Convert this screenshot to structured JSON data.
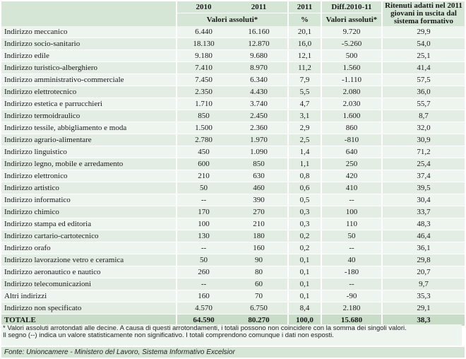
{
  "header": {
    "col_2010": "2010",
    "col_2011": "2011",
    "col_2011_pct": "2011",
    "col_diff": "Diff.2010-11",
    "col_ritenuti": "Ritenuti adatti nel 2011 giovani in uscita dal sistema formativo",
    "sub_valori_assoluti": "Valori assoluti*",
    "sub_pct": "%",
    "sub_diff": "Valori assoluti*"
  },
  "rows": [
    {
      "label": "Indirizzo meccanico",
      "v2010": "6.440",
      "v2011": "16.160",
      "pct": "20,1",
      "diff": "9.720",
      "ritenuti": "29,9"
    },
    {
      "label": "Indirizzo socio-sanitario",
      "v2010": "18.130",
      "v2011": "12.870",
      "pct": "16,0",
      "diff": "-5.260",
      "ritenuti": "54,0"
    },
    {
      "label": "Indirizzo edile",
      "v2010": "9.180",
      "v2011": "9.680",
      "pct": "12,1",
      "diff": "500",
      "ritenuti": "25,1"
    },
    {
      "label": "Indirizzo turistico-alberghiero",
      "v2010": "7.410",
      "v2011": "8.970",
      "pct": "11,2",
      "diff": "1.560",
      "ritenuti": "41,4"
    },
    {
      "label": "Indirizzo amministrativo-commerciale",
      "v2010": "7.450",
      "v2011": "6.340",
      "pct": "7,9",
      "diff": "-1.110",
      "ritenuti": "57,5"
    },
    {
      "label": "Indirizzo elettrotecnico",
      "v2010": "2.350",
      "v2011": "4.430",
      "pct": "5,5",
      "diff": "2.080",
      "ritenuti": "36,0"
    },
    {
      "label": "Indirizzo estetica e parrucchieri",
      "v2010": "1.710",
      "v2011": "3.740",
      "pct": "4,7",
      "diff": "2.030",
      "ritenuti": "55,7"
    },
    {
      "label": "Indirizzo termoidraulico",
      "v2010": "850",
      "v2011": "2.450",
      "pct": "3,1",
      "diff": "1.600",
      "ritenuti": "8,7"
    },
    {
      "label": "Indirizzo tessile, abbigliamento e moda",
      "v2010": "1.500",
      "v2011": "2.360",
      "pct": "2,9",
      "diff": "860",
      "ritenuti": "32,0"
    },
    {
      "label": "Indirizzo agrario-alimentare",
      "v2010": "2.780",
      "v2011": "1.970",
      "pct": "2,5",
      "diff": "-810",
      "ritenuti": "30,9"
    },
    {
      "label": "Indirizzo linguistico",
      "v2010": "450",
      "v2011": "1.090",
      "pct": "1,4",
      "diff": "640",
      "ritenuti": "71,2"
    },
    {
      "label": "Indirizzo legno, mobile e arredamento",
      "v2010": "600",
      "v2011": "850",
      "pct": "1,1",
      "diff": "250",
      "ritenuti": "25,4"
    },
    {
      "label": "Indirizzo elettronico",
      "v2010": "210",
      "v2011": "630",
      "pct": "0,8",
      "diff": "420",
      "ritenuti": "37,4"
    },
    {
      "label": "Indirizzo artistico",
      "v2010": "50",
      "v2011": "460",
      "pct": "0,6",
      "diff": "410",
      "ritenuti": "39,5"
    },
    {
      "label": "Indirizzo informatico",
      "v2010": "--",
      "v2011": "390",
      "pct": "0,5",
      "diff": "--",
      "ritenuti": "30,4"
    },
    {
      "label": "Indirizzo chimico",
      "v2010": "170",
      "v2011": "270",
      "pct": "0,3",
      "diff": "100",
      "ritenuti": "33,7"
    },
    {
      "label": "Indirizzo stampa ed editoria",
      "v2010": "100",
      "v2011": "210",
      "pct": "0,3",
      "diff": "110",
      "ritenuti": "48,3"
    },
    {
      "label": "Indirizzo cartario-cartotecnico",
      "v2010": "130",
      "v2011": "180",
      "pct": "0,2",
      "diff": "50",
      "ritenuti": "46,4"
    },
    {
      "label": "Indirizzo orafo",
      "v2010": "--",
      "v2011": "160",
      "pct": "0,2",
      "diff": "--",
      "ritenuti": "36,1"
    },
    {
      "label": "Indirizzo lavorazione vetro e ceramica",
      "v2010": "50",
      "v2011": "90",
      "pct": "0,1",
      "diff": "40",
      "ritenuti": "29,8"
    },
    {
      "label": "Indirizzo aeronautico e nautico",
      "v2010": "260",
      "v2011": "80",
      "pct": "0,1",
      "diff": "-180",
      "ritenuti": "20,7"
    },
    {
      "label": "Indirizzo telecomunicazioni",
      "v2010": "--",
      "v2011": "60",
      "pct": "0,1",
      "diff": "--",
      "ritenuti": "9,7"
    },
    {
      "label": "Altri indirizzi",
      "v2010": "160",
      "v2011": "70",
      "pct": "0,1",
      "diff": "-90",
      "ritenuti": "35,3"
    },
    {
      "label": "Indirizzo non specificato",
      "v2010": "4.570",
      "v2011": "6.750",
      "pct": "8,4",
      "diff": "2.180",
      "ritenuti": "29,1"
    }
  ],
  "total": {
    "label": "TOTALE",
    "v2010": "64.590",
    "v2011": "80.270",
    "pct": "100,0",
    "diff": "15.680",
    "ritenuti": "38,3"
  },
  "notes": {
    "line1": "* Valori assoluti arrotondati alle decine. A causa di questi arrotondamenti, i totali possono non coincidere con la somma dei singoli valori.",
    "line2": "Il segno (--) indica un valore statisticamente non significativo. I totali comprendono comunque i dati non esposti."
  },
  "source": "Fonte: Unioncamere - Ministero del Lavoro, Sistema Informativo Excelsior",
  "colors": {
    "header_bg": "#d6e6d6",
    "row_even": "#eef4ee",
    "row_odd": "#e4ede4",
    "total_bg": "#c8dcc8"
  }
}
